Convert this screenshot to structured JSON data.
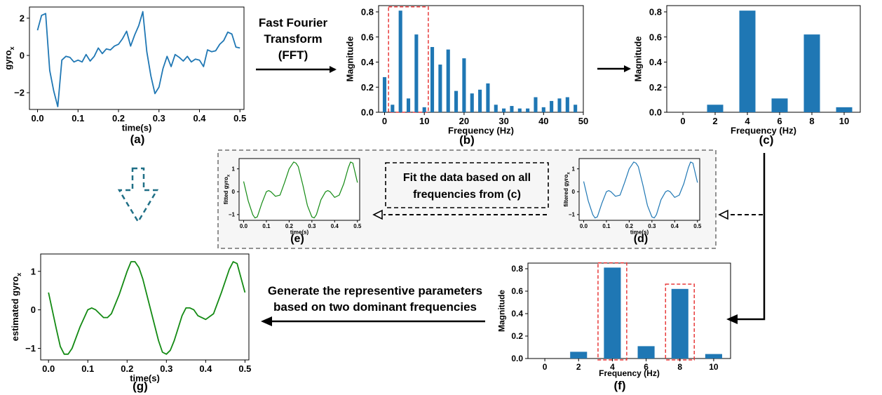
{
  "flow_text": {
    "fft_line1": "Fast Fourier",
    "fft_line2": "Transform",
    "fft_line3": "(FFT)",
    "fit_line1": "Fit the data based on all",
    "fit_line2": "frequencies from (c)",
    "gen_line1": "Generate the representive parameters",
    "gen_line2": "based on two dominant frequencies"
  },
  "panel_labels": {
    "a": "(a)",
    "b": "(b)",
    "c": "(c)",
    "d": "(d)",
    "e": "(e)",
    "f": "(f)",
    "g": "(g)"
  },
  "colors": {
    "blue": "#1f77b4",
    "green": "#138a13",
    "red_dash": "#e83a3a",
    "teal_arrow": "#1f6f86",
    "gray_dash": "#6f6f6f",
    "panel_bg": "#f6f6f6"
  },
  "chart_data": [
    {
      "id": "a",
      "type": "line",
      "xlabel": "time(s)",
      "ylabel": "gyro",
      "ylabel_sub": "x",
      "xlim": [
        -0.02,
        0.51
      ],
      "ylim": [
        -2.9,
        2.6
      ],
      "xticks": [
        0.0,
        0.1,
        0.2,
        0.3,
        0.4,
        0.5
      ],
      "xtick_labels": [
        "0.0",
        "0.1",
        "0.2",
        "0.3",
        "0.4",
        "0.5"
      ],
      "yticks": [
        -2,
        0,
        2
      ],
      "ytick_labels": [
        "−2",
        "0",
        "2"
      ],
      "series": [
        {
          "color": "#1f77b4",
          "x": [
            0.0,
            0.01,
            0.02,
            0.03,
            0.04,
            0.05,
            0.06,
            0.07,
            0.08,
            0.09,
            0.1,
            0.11,
            0.12,
            0.13,
            0.14,
            0.15,
            0.16,
            0.17,
            0.18,
            0.19,
            0.2,
            0.21,
            0.22,
            0.23,
            0.24,
            0.25,
            0.26,
            0.27,
            0.28,
            0.29,
            0.3,
            0.31,
            0.32,
            0.33,
            0.34,
            0.35,
            0.36,
            0.37,
            0.38,
            0.39,
            0.4,
            0.41,
            0.42,
            0.43,
            0.44,
            0.45,
            0.46,
            0.47,
            0.48,
            0.49,
            0.5
          ],
          "y": [
            1.35,
            2.15,
            2.25,
            -0.8,
            -1.9,
            -2.75,
            -0.25,
            -0.05,
            -0.1,
            -0.35,
            -0.25,
            -0.35,
            0.05,
            -0.3,
            -0.05,
            0.4,
            0.1,
            0.35,
            0.3,
            0.5,
            0.6,
            0.9,
            1.3,
            0.5,
            1.1,
            1.6,
            2.35,
            0.2,
            -1.1,
            -2.05,
            -1.7,
            -0.7,
            -0.05,
            -0.6,
            0.05,
            -0.1,
            -0.3,
            -0.05,
            -0.35,
            -0.2,
            -0.25,
            -0.6,
            0.3,
            0.2,
            0.25,
            0.6,
            0.8,
            1.25,
            1.15,
            0.45,
            0.4
          ]
        }
      ]
    },
    {
      "id": "b",
      "type": "bar",
      "xlabel": "Frequency (Hz)",
      "ylabel": "Magnitude",
      "xlim": [
        -1.5,
        50
      ],
      "ylim": [
        0,
        0.85
      ],
      "bar_width": 0.9,
      "xticks": [
        0,
        10,
        20,
        30,
        40,
        50
      ],
      "xtick_labels": [
        "0",
        "10",
        "20",
        "30",
        "40",
        "50"
      ],
      "yticks": [
        0.0,
        0.2,
        0.4,
        0.6,
        0.8
      ],
      "ytick_labels": [
        "0.0",
        "0.2",
        "0.4",
        "0.6",
        "0.8"
      ],
      "x": [
        0,
        2,
        4,
        6,
        8,
        10,
        12,
        14,
        16,
        18,
        20,
        22,
        24,
        26,
        28,
        30,
        32,
        34,
        36,
        38,
        40,
        42,
        44,
        46,
        48
      ],
      "values": [
        0.28,
        0.06,
        0.81,
        0.11,
        0.62,
        0.04,
        0.52,
        0.38,
        0.5,
        0.17,
        0.43,
        0.15,
        0.18,
        0.23,
        0.06,
        0.03,
        0.05,
        0.03,
        0.03,
        0.12,
        0.04,
        0.09,
        0.11,
        0.12,
        0.06
      ],
      "highlight_range": [
        1,
        11
      ],
      "highlight_ymax": 0.84
    },
    {
      "id": "c",
      "type": "bar",
      "xlabel": "Frequency (Hz)",
      "ylabel": "Magnitude",
      "xlim": [
        -1,
        11
      ],
      "ylim": [
        0,
        0.85
      ],
      "bar_width": 1.0,
      "xticks": [
        0,
        2,
        4,
        6,
        8,
        10
      ],
      "xtick_labels": [
        "0",
        "2",
        "4",
        "6",
        "8",
        "10"
      ],
      "yticks": [
        0.0,
        0.2,
        0.4,
        0.6,
        0.8
      ],
      "ytick_labels": [
        "0.0",
        "0.2",
        "0.4",
        "0.6",
        "0.8"
      ],
      "x": [
        0,
        2,
        4,
        6,
        8,
        10
      ],
      "values": [
        0.0,
        0.06,
        0.81,
        0.11,
        0.62,
        0.04
      ]
    },
    {
      "id": "d",
      "type": "line",
      "xlabel": "time(s)",
      "ylabel": "filtered gyro",
      "ylabel_sub": "x",
      "xlim": [
        -0.02,
        0.51
      ],
      "ylim": [
        -1.25,
        1.45
      ],
      "xticks": [
        0.0,
        0.1,
        0.2,
        0.3,
        0.4,
        0.5
      ],
      "xtick_labels": [
        "0.0",
        "0.1",
        "0.2",
        "0.3",
        "0.4",
        "0.5"
      ],
      "yticks": [
        -1,
        0,
        1
      ],
      "ytick_labels": [
        "−1",
        "0",
        "1"
      ],
      "series": [
        {
          "color": "#1f77b4",
          "x": [
            0.0,
            0.02,
            0.04,
            0.05,
            0.06,
            0.08,
            0.1,
            0.11,
            0.12,
            0.14,
            0.16,
            0.18,
            0.2,
            0.22,
            0.23,
            0.24,
            0.26,
            0.28,
            0.3,
            0.31,
            0.32,
            0.34,
            0.36,
            0.37,
            0.38,
            0.4,
            0.42,
            0.44,
            0.46,
            0.47,
            0.48,
            0.5
          ],
          "y": [
            0.45,
            -0.4,
            -1.0,
            -1.15,
            -1.1,
            -0.5,
            0.0,
            0.05,
            0.0,
            -0.2,
            -0.15,
            0.4,
            1.0,
            1.3,
            1.25,
            1.1,
            0.3,
            -0.6,
            -1.1,
            -1.15,
            -1.0,
            -0.35,
            0.0,
            0.05,
            0.0,
            -0.25,
            -0.15,
            0.35,
            1.05,
            1.3,
            1.25,
            0.4
          ]
        }
      ]
    },
    {
      "id": "e",
      "type": "line",
      "xlabel": "time(s)",
      "ylabel": "fitted gyro",
      "ylabel_sub": "x",
      "xlim": [
        -0.02,
        0.51
      ],
      "ylim": [
        -1.25,
        1.45
      ],
      "xticks": [
        0.0,
        0.1,
        0.2,
        0.3,
        0.4,
        0.5
      ],
      "xtick_labels": [
        "0.0",
        "0.1",
        "0.2",
        "0.3",
        "0.4",
        "0.5"
      ],
      "yticks": [
        -1,
        0,
        1
      ],
      "ytick_labels": [
        "−1",
        "0",
        "1"
      ],
      "series": [
        {
          "color": "#138a13",
          "x": [
            0.0,
            0.02,
            0.04,
            0.05,
            0.06,
            0.08,
            0.1,
            0.11,
            0.12,
            0.14,
            0.16,
            0.18,
            0.2,
            0.22,
            0.23,
            0.24,
            0.26,
            0.28,
            0.3,
            0.31,
            0.32,
            0.34,
            0.36,
            0.37,
            0.38,
            0.4,
            0.42,
            0.44,
            0.46,
            0.47,
            0.48,
            0.5
          ],
          "y": [
            0.45,
            -0.4,
            -1.0,
            -1.15,
            -1.1,
            -0.5,
            0.0,
            0.05,
            0.0,
            -0.2,
            -0.15,
            0.4,
            1.0,
            1.3,
            1.25,
            1.1,
            0.3,
            -0.6,
            -1.1,
            -1.15,
            -1.0,
            -0.35,
            0.0,
            0.05,
            0.0,
            -0.25,
            -0.15,
            0.35,
            1.05,
            1.3,
            1.25,
            0.4
          ]
        }
      ]
    },
    {
      "id": "f",
      "type": "bar",
      "xlabel": "Frequency (Hz)",
      "ylabel": "Magnitude",
      "xlim": [
        -1,
        11
      ],
      "ylim": [
        0,
        0.85
      ],
      "bar_width": 1.0,
      "xticks": [
        0,
        2,
        4,
        6,
        8,
        10
      ],
      "xtick_labels": [
        "0",
        "2",
        "4",
        "6",
        "8",
        "10"
      ],
      "yticks": [
        0.0,
        0.2,
        0.4,
        0.6,
        0.8
      ],
      "ytick_labels": [
        "0.0",
        "0.2",
        "0.4",
        "0.6",
        "0.8"
      ],
      "x": [
        0,
        2,
        4,
        6,
        8,
        10
      ],
      "values": [
        0.0,
        0.06,
        0.81,
        0.11,
        0.62,
        0.04
      ],
      "highlight_bars": [
        4,
        8
      ]
    },
    {
      "id": "g",
      "type": "line",
      "xlabel": "time(s)",
      "ylabel": "estimated gyro",
      "ylabel_sub": "x",
      "xlim": [
        -0.02,
        0.51
      ],
      "ylim": [
        -1.3,
        1.45
      ],
      "xticks": [
        0.0,
        0.1,
        0.2,
        0.3,
        0.4,
        0.5
      ],
      "xtick_labels": [
        "0.0",
        "0.1",
        "0.2",
        "0.3",
        "0.4",
        "0.5"
      ],
      "yticks": [
        -1,
        0,
        1
      ],
      "ytick_labels": [
        "−1",
        "0",
        "1"
      ],
      "series": [
        {
          "color": "#138a13",
          "x": [
            0.0,
            0.02,
            0.03,
            0.04,
            0.05,
            0.06,
            0.08,
            0.1,
            0.11,
            0.12,
            0.14,
            0.15,
            0.16,
            0.18,
            0.2,
            0.21,
            0.22,
            0.23,
            0.24,
            0.26,
            0.28,
            0.29,
            0.3,
            0.31,
            0.32,
            0.34,
            0.35,
            0.36,
            0.37,
            0.38,
            0.4,
            0.42,
            0.44,
            0.46,
            0.47,
            0.48,
            0.5
          ],
          "y": [
            0.45,
            -0.5,
            -0.95,
            -1.15,
            -1.15,
            -1.0,
            -0.45,
            0.0,
            0.05,
            0.0,
            -0.2,
            -0.2,
            -0.1,
            0.4,
            1.0,
            1.25,
            1.25,
            1.1,
            0.8,
            0.0,
            -0.8,
            -1.1,
            -1.15,
            -1.05,
            -0.8,
            -0.15,
            0.05,
            0.05,
            0.0,
            -0.15,
            -0.25,
            -0.1,
            0.45,
            1.05,
            1.25,
            1.2,
            0.45
          ]
        }
      ]
    }
  ]
}
